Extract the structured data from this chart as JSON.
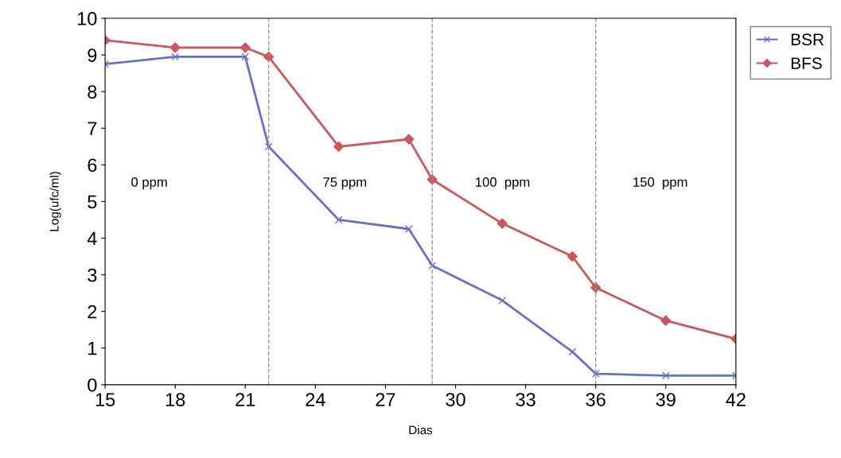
{
  "chart_data": {
    "type": "line",
    "xlabel": "Dias",
    "ylabel": "Log(ufc/ml)",
    "xlim": [
      15,
      42
    ],
    "xticks": [
      15,
      18,
      21,
      24,
      27,
      30,
      33,
      36,
      39,
      42
    ],
    "ylim": [
      0,
      10
    ],
    "yticks": [
      0,
      1,
      2,
      3,
      4,
      5,
      6,
      7,
      8,
      9,
      10
    ],
    "grid": false,
    "legend": "top right",
    "series": [
      {
        "name": "BSR",
        "color": "#6a6fc8",
        "marker": "cross",
        "x": [
          15,
          18,
          21,
          22,
          25,
          28,
          29,
          32,
          35,
          36,
          39,
          42
        ],
        "values": [
          8.75,
          8.95,
          8.95,
          6.5,
          4.5,
          4.25,
          3.25,
          2.3,
          0.9,
          0.3,
          0.25,
          0.25
        ]
      },
      {
        "name": "BFS",
        "color": "#c8585a",
        "marker": "diamond",
        "x": [
          15,
          18,
          21,
          22,
          25,
          28,
          29,
          32,
          35,
          36,
          39,
          42
        ],
        "values": [
          9.4,
          9.2,
          9.2,
          8.95,
          6.5,
          6.7,
          5.6,
          4.4,
          3.5,
          2.65,
          1.75,
          1.25
        ]
      }
    ],
    "ref_lines": [
      {
        "axis": "x",
        "value": 22,
        "line_style": "dashed",
        "color": "#999999"
      },
      {
        "axis": "x",
        "value": 29,
        "line_style": "dashed",
        "color": "#999999"
      },
      {
        "axis": "x",
        "value": 36,
        "line_style": "dashed",
        "color": "#999999"
      }
    ],
    "annotations": [
      "0 ppm",
      "75 ppm",
      "100  ppm",
      "150  ppm"
    ]
  }
}
